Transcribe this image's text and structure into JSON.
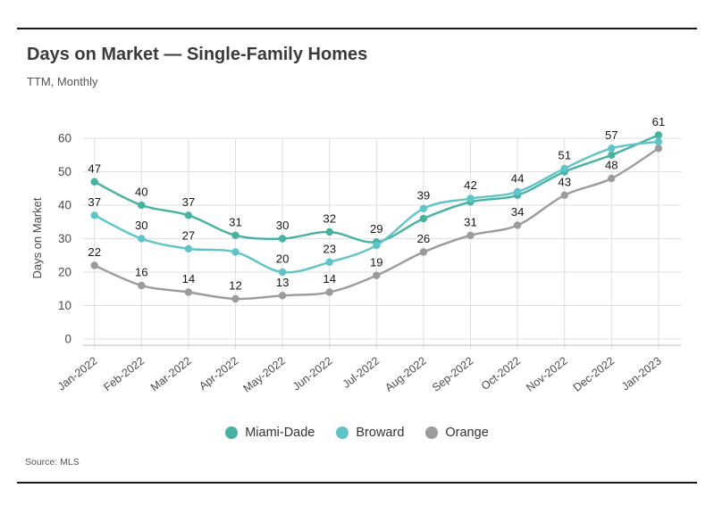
{
  "footer": {
    "source": "Source: MLS"
  },
  "chart_data": {
    "type": "line",
    "title": "Days on Market — Single-Family Homes",
    "subtitle": "TTM, Monthly",
    "ylabel": "Days on Market",
    "ylim": [
      0,
      60
    ],
    "yticks": [
      0,
      10,
      20,
      30,
      40,
      50,
      60
    ],
    "grid": true,
    "legend_position": "bottom",
    "categories": [
      "Jan-2022",
      "Feb-2022",
      "Mar-2022",
      "Apr-2022",
      "May-2022",
      "Jun-2022",
      "Jul-2022",
      "Aug-2022",
      "Sep-2022",
      "Oct-2022",
      "Nov-2022",
      "Dec-2022",
      "Jan-2023"
    ],
    "series": [
      {
        "name": "Miami-Dade",
        "color": "#48b2a2",
        "values": [
          47,
          40,
          37,
          31,
          30,
          32,
          29,
          36,
          41,
          43,
          50,
          55,
          61
        ],
        "labels": [
          47,
          40,
          37,
          31,
          30,
          32,
          29,
          null,
          null,
          null,
          null,
          null,
          61
        ]
      },
      {
        "name": "Broward",
        "color": "#5fc4c8",
        "values": [
          37,
          30,
          27,
          26,
          20,
          23,
          28,
          39,
          42,
          44,
          51,
          57,
          59
        ],
        "labels": [
          37,
          30,
          27,
          null,
          20,
          23,
          null,
          39,
          42,
          44,
          51,
          57,
          null
        ]
      },
      {
        "name": "Orange",
        "color": "#9b9b9b",
        "values": [
          22,
          16,
          14,
          12,
          13,
          14,
          19,
          26,
          31,
          34,
          43,
          48,
          57
        ],
        "labels": [
          22,
          16,
          14,
          12,
          13,
          14,
          19,
          26,
          31,
          34,
          43,
          48,
          null
        ]
      }
    ],
    "colors": {
      "grid": "#dfdfdf",
      "axis_line": "#c9c9c9",
      "tick_text": "#4a4a4a",
      "value_label": "#161616"
    }
  }
}
